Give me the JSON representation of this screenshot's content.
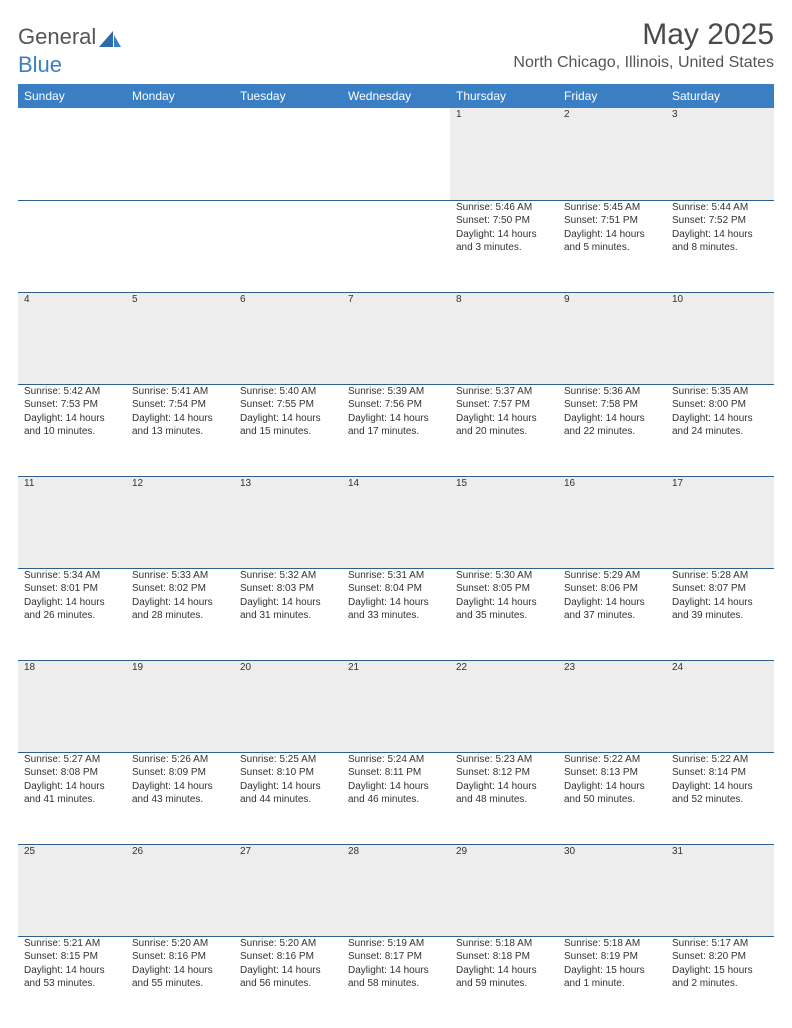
{
  "brand": {
    "part1": "General",
    "part2": "Blue"
  },
  "title": {
    "month": "May 2025",
    "location": "North Chicago, Illinois, United States"
  },
  "colors": {
    "header_bg": "#3a7fc4",
    "row_divider": "#2f5f8f",
    "daynum_bg": "#ededed",
    "text": "#333333"
  },
  "weekdays": [
    "Sunday",
    "Monday",
    "Tuesday",
    "Wednesday",
    "Thursday",
    "Friday",
    "Saturday"
  ],
  "weeks": [
    [
      null,
      null,
      null,
      null,
      {
        "n": "1",
        "lines": [
          "Sunrise: 5:46 AM",
          "Sunset: 7:50 PM",
          "Daylight: 14 hours",
          "and 3 minutes."
        ]
      },
      {
        "n": "2",
        "lines": [
          "Sunrise: 5:45 AM",
          "Sunset: 7:51 PM",
          "Daylight: 14 hours",
          "and 5 minutes."
        ]
      },
      {
        "n": "3",
        "lines": [
          "Sunrise: 5:44 AM",
          "Sunset: 7:52 PM",
          "Daylight: 14 hours",
          "and 8 minutes."
        ]
      }
    ],
    [
      {
        "n": "4",
        "lines": [
          "Sunrise: 5:42 AM",
          "Sunset: 7:53 PM",
          "Daylight: 14 hours",
          "and 10 minutes."
        ]
      },
      {
        "n": "5",
        "lines": [
          "Sunrise: 5:41 AM",
          "Sunset: 7:54 PM",
          "Daylight: 14 hours",
          "and 13 minutes."
        ]
      },
      {
        "n": "6",
        "lines": [
          "Sunrise: 5:40 AM",
          "Sunset: 7:55 PM",
          "Daylight: 14 hours",
          "and 15 minutes."
        ]
      },
      {
        "n": "7",
        "lines": [
          "Sunrise: 5:39 AM",
          "Sunset: 7:56 PM",
          "Daylight: 14 hours",
          "and 17 minutes."
        ]
      },
      {
        "n": "8",
        "lines": [
          "Sunrise: 5:37 AM",
          "Sunset: 7:57 PM",
          "Daylight: 14 hours",
          "and 20 minutes."
        ]
      },
      {
        "n": "9",
        "lines": [
          "Sunrise: 5:36 AM",
          "Sunset: 7:58 PM",
          "Daylight: 14 hours",
          "and 22 minutes."
        ]
      },
      {
        "n": "10",
        "lines": [
          "Sunrise: 5:35 AM",
          "Sunset: 8:00 PM",
          "Daylight: 14 hours",
          "and 24 minutes."
        ]
      }
    ],
    [
      {
        "n": "11",
        "lines": [
          "Sunrise: 5:34 AM",
          "Sunset: 8:01 PM",
          "Daylight: 14 hours",
          "and 26 minutes."
        ]
      },
      {
        "n": "12",
        "lines": [
          "Sunrise: 5:33 AM",
          "Sunset: 8:02 PM",
          "Daylight: 14 hours",
          "and 28 minutes."
        ]
      },
      {
        "n": "13",
        "lines": [
          "Sunrise: 5:32 AM",
          "Sunset: 8:03 PM",
          "Daylight: 14 hours",
          "and 31 minutes."
        ]
      },
      {
        "n": "14",
        "lines": [
          "Sunrise: 5:31 AM",
          "Sunset: 8:04 PM",
          "Daylight: 14 hours",
          "and 33 minutes."
        ]
      },
      {
        "n": "15",
        "lines": [
          "Sunrise: 5:30 AM",
          "Sunset: 8:05 PM",
          "Daylight: 14 hours",
          "and 35 minutes."
        ]
      },
      {
        "n": "16",
        "lines": [
          "Sunrise: 5:29 AM",
          "Sunset: 8:06 PM",
          "Daylight: 14 hours",
          "and 37 minutes."
        ]
      },
      {
        "n": "17",
        "lines": [
          "Sunrise: 5:28 AM",
          "Sunset: 8:07 PM",
          "Daylight: 14 hours",
          "and 39 minutes."
        ]
      }
    ],
    [
      {
        "n": "18",
        "lines": [
          "Sunrise: 5:27 AM",
          "Sunset: 8:08 PM",
          "Daylight: 14 hours",
          "and 41 minutes."
        ]
      },
      {
        "n": "19",
        "lines": [
          "Sunrise: 5:26 AM",
          "Sunset: 8:09 PM",
          "Daylight: 14 hours",
          "and 43 minutes."
        ]
      },
      {
        "n": "20",
        "lines": [
          "Sunrise: 5:25 AM",
          "Sunset: 8:10 PM",
          "Daylight: 14 hours",
          "and 44 minutes."
        ]
      },
      {
        "n": "21",
        "lines": [
          "Sunrise: 5:24 AM",
          "Sunset: 8:11 PM",
          "Daylight: 14 hours",
          "and 46 minutes."
        ]
      },
      {
        "n": "22",
        "lines": [
          "Sunrise: 5:23 AM",
          "Sunset: 8:12 PM",
          "Daylight: 14 hours",
          "and 48 minutes."
        ]
      },
      {
        "n": "23",
        "lines": [
          "Sunrise: 5:22 AM",
          "Sunset: 8:13 PM",
          "Daylight: 14 hours",
          "and 50 minutes."
        ]
      },
      {
        "n": "24",
        "lines": [
          "Sunrise: 5:22 AM",
          "Sunset: 8:14 PM",
          "Daylight: 14 hours",
          "and 52 minutes."
        ]
      }
    ],
    [
      {
        "n": "25",
        "lines": [
          "Sunrise: 5:21 AM",
          "Sunset: 8:15 PM",
          "Daylight: 14 hours",
          "and 53 minutes."
        ]
      },
      {
        "n": "26",
        "lines": [
          "Sunrise: 5:20 AM",
          "Sunset: 8:16 PM",
          "Daylight: 14 hours",
          "and 55 minutes."
        ]
      },
      {
        "n": "27",
        "lines": [
          "Sunrise: 5:20 AM",
          "Sunset: 8:16 PM",
          "Daylight: 14 hours",
          "and 56 minutes."
        ]
      },
      {
        "n": "28",
        "lines": [
          "Sunrise: 5:19 AM",
          "Sunset: 8:17 PM",
          "Daylight: 14 hours",
          "and 58 minutes."
        ]
      },
      {
        "n": "29",
        "lines": [
          "Sunrise: 5:18 AM",
          "Sunset: 8:18 PM",
          "Daylight: 14 hours",
          "and 59 minutes."
        ]
      },
      {
        "n": "30",
        "lines": [
          "Sunrise: 5:18 AM",
          "Sunset: 8:19 PM",
          "Daylight: 15 hours",
          "and 1 minute."
        ]
      },
      {
        "n": "31",
        "lines": [
          "Sunrise: 5:17 AM",
          "Sunset: 8:20 PM",
          "Daylight: 15 hours",
          "and 2 minutes."
        ]
      }
    ]
  ]
}
